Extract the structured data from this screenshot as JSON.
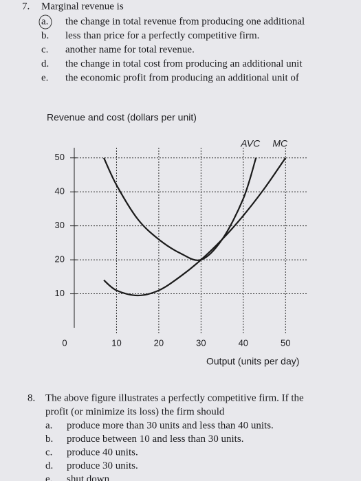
{
  "question7": {
    "number": "7.",
    "stem": "Marginal revenue is",
    "items": [
      {
        "letter": "a.",
        "text": "the change in total revenue from producing one additional"
      },
      {
        "letter": "b.",
        "text": "less than price for a perfectly competitive firm."
      },
      {
        "letter": "c.",
        "text": "another name for total revenue."
      },
      {
        "letter": "d.",
        "text": "the change in total cost from producing an additional unit"
      },
      {
        "letter": "e.",
        "text": "the economic profit from producing an additional unit of"
      }
    ]
  },
  "chart_data": {
    "type": "line",
    "title": "Revenue and cost (dollars per unit)",
    "x_label": "Output (units per day)",
    "xlim": [
      0,
      55
    ],
    "ylim": [
      0,
      55
    ],
    "xticks": [
      0,
      10,
      20,
      30,
      40,
      50
    ],
    "yticks": [
      10,
      20,
      30,
      40,
      50
    ],
    "grid": true,
    "series": [
      {
        "name": "MC",
        "color": "#1a1a1a",
        "x": [
          7,
          10,
          15,
          20,
          25,
          30,
          35,
          40,
          45,
          50
        ],
        "values": [
          14,
          11,
          9.5,
          11,
          15,
          20,
          26,
          33,
          41,
          50
        ]
      },
      {
        "name": "AVC",
        "color": "#1a1a1a",
        "x": [
          7,
          10,
          15,
          20,
          25,
          30,
          35,
          40,
          43
        ],
        "values": [
          50,
          42,
          32,
          26,
          22,
          20,
          26,
          38,
          50
        ]
      }
    ]
  },
  "question8": {
    "number": "8.",
    "stem": [
      "The above figure illustrates a perfectly competitive firm. If the",
      "profit (or minimize its loss) the firm should"
    ],
    "items": [
      {
        "letter": "a.",
        "text": "produce more than 30 units and less than 40 units."
      },
      {
        "letter": "b.",
        "text": "produce between 10 and less than 30 units."
      },
      {
        "letter": "c.",
        "text": "produce 40 units."
      },
      {
        "letter": "d.",
        "text": "produce 30 units."
      },
      {
        "letter": "e.",
        "text": "shut down"
      }
    ]
  }
}
